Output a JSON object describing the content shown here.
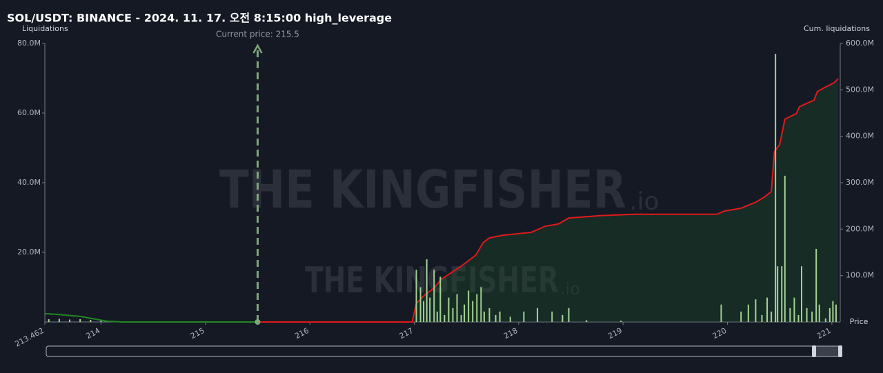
{
  "chart_data": {
    "type": "combo",
    "title": "SOL/USDT: BINANCE - 2024. 11. 17. 오전 8:15:00 high_leverage",
    "ylabel": "Liquidations",
    "y2label": "Cum. liquidations",
    "xlabel": "Price",
    "watermark": "THE KINGFISHER",
    "watermark_suffix": ".io",
    "xlim": [
      213.462,
      221.08
    ],
    "xticks": [
      213.462,
      214,
      215,
      216,
      217,
      218,
      219,
      220,
      221
    ],
    "ylim": [
      0,
      80
    ],
    "yticks": [
      {
        "value": 20,
        "label": "20.0M"
      },
      {
        "value": 40,
        "label": "40.0M"
      },
      {
        "value": 60,
        "label": "60.0M"
      },
      {
        "value": 80,
        "label": "80.0M"
      }
    ],
    "y2lim": [
      0,
      600
    ],
    "y2ticks": [
      {
        "value": 100,
        "label": "100.0M"
      },
      {
        "value": 200,
        "label": "200.0M"
      },
      {
        "value": 300,
        "label": "300.0M"
      },
      {
        "value": 400,
        "label": "400.0M"
      },
      {
        "value": 500,
        "label": "500.0M"
      },
      {
        "value": 600,
        "label": "600.0M"
      }
    ],
    "annotation": {
      "label": "Current price: 215.5",
      "value": 215.5,
      "color": "#7fa87a"
    },
    "series": [
      {
        "type": "bar",
        "color": "#a5d394",
        "x": [
          213.5,
          213.6,
          213.7,
          213.8,
          213.9,
          214.0,
          214.05,
          217.02,
          217.06,
          217.09,
          217.12,
          217.15,
          217.19,
          217.22,
          217.25,
          217.29,
          217.33,
          217.37,
          217.41,
          217.45,
          217.48,
          217.52,
          217.56,
          217.6,
          217.64,
          217.67,
          217.72,
          217.78,
          217.82,
          217.92,
          218.05,
          218.18,
          218.32,
          218.42,
          218.48,
          218.65,
          218.98,
          219.94,
          220.13,
          220.2,
          220.27,
          220.33,
          220.38,
          220.42,
          220.46,
          220.48,
          220.52,
          220.55,
          220.6,
          220.64,
          220.68,
          220.71,
          220.76,
          220.81,
          220.85,
          220.88,
          220.94,
          220.98,
          221.01,
          221.04
        ],
        "values": [
          0.8,
          0.9,
          0.7,
          0.8,
          0.6,
          0.5,
          0.4,
          15,
          10,
          6,
          18,
          7,
          15,
          3,
          13,
          2,
          7,
          4,
          8,
          2,
          5,
          9,
          6,
          8,
          10,
          3,
          4,
          2,
          3,
          1.5,
          3,
          4,
          3,
          2,
          4,
          0.5,
          0.4,
          5,
          3,
          5,
          6.5,
          2,
          7,
          3,
          77,
          16,
          16,
          42,
          4,
          7,
          2,
          16,
          4,
          3,
          21,
          5,
          1,
          4,
          6,
          5
        ]
      },
      {
        "type": "line",
        "axis": "y2",
        "color": "#1f8a1f",
        "x": [
          213.462,
          213.6,
          213.8,
          213.95,
          214.05,
          214.2,
          215.5
        ],
        "values": [
          18,
          16,
          12,
          6,
          2,
          0,
          0
        ]
      },
      {
        "type": "area",
        "axis": "y2",
        "color": "#e01a1a",
        "x": [
          215.5,
          216.98,
          217.02,
          217.1,
          217.19,
          217.26,
          217.36,
          217.46,
          217.59,
          217.66,
          217.72,
          217.85,
          218.12,
          218.25,
          218.38,
          218.48,
          218.78,
          219.11,
          219.9,
          219.97,
          220.13,
          220.27,
          220.36,
          220.42,
          220.45,
          220.5,
          220.55,
          220.66,
          220.69,
          220.76,
          220.83,
          220.86,
          220.93,
          221.02,
          221.06
        ],
        "values": [
          0,
          0,
          40,
          58,
          73,
          92,
          107,
          122,
          144,
          171,
          181,
          187,
          193,
          206,
          211,
          224,
          229,
          232,
          232,
          239,
          245,
          258,
          270,
          281,
          367,
          382,
          437,
          449,
          464,
          471,
          478,
          496,
          505,
          515,
          524
        ]
      }
    ]
  }
}
